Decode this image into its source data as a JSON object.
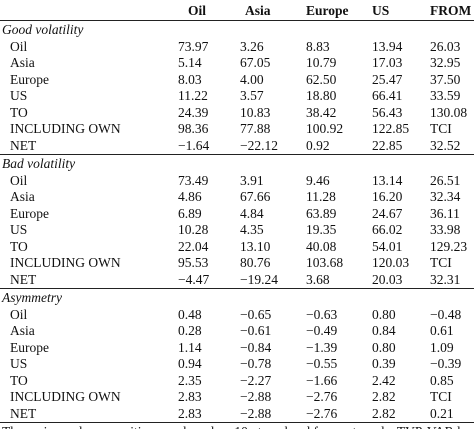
{
  "table": {
    "header": [
      "Oil",
      "Asia",
      "Europe",
      "US",
      "FROM"
    ],
    "sections": [
      {
        "title": "Good volatility",
        "rows": [
          [
            "Oil",
            "73.97",
            "3.26",
            "8.83",
            "13.94",
            "26.03"
          ],
          [
            "Asia",
            "5.14",
            "67.05",
            "10.79",
            "17.03",
            "32.95"
          ],
          [
            "Europe",
            "8.03",
            "4.00",
            "62.50",
            "25.47",
            "37.50"
          ],
          [
            "US",
            "11.22",
            "3.57",
            "18.80",
            "66.41",
            "33.59"
          ],
          [
            "TO",
            "24.39",
            "10.83",
            "38.42",
            "56.43",
            "130.08"
          ],
          [
            "INCLUDING OWN",
            "98.36",
            "77.88",
            "100.92",
            "122.85",
            "TCI"
          ],
          [
            "NET",
            "−1.64",
            "−22.12",
            "0.92",
            "22.85",
            "32.52"
          ]
        ]
      },
      {
        "title": "Bad volatility",
        "rows": [
          [
            "Oil",
            "73.49",
            "3.91",
            "9.46",
            "13.14",
            "26.51"
          ],
          [
            "Asia",
            "4.86",
            "67.66",
            "11.28",
            "16.20",
            "32.34"
          ],
          [
            "Europe",
            "6.89",
            "4.84",
            "63.89",
            "24.67",
            "36.11"
          ],
          [
            "US",
            "10.28",
            "4.35",
            "19.35",
            "66.02",
            "33.98"
          ],
          [
            "TO",
            "22.04",
            "13.10",
            "40.08",
            "54.01",
            "129.23"
          ],
          [
            "INCLUDING OWN",
            "95.53",
            "80.76",
            "103.68",
            "120.03",
            "TCI"
          ],
          [
            "NET",
            "−4.47",
            "−19.24",
            "3.68",
            "20.03",
            "32.31"
          ]
        ]
      },
      {
        "title": "Asymmetry",
        "rows": [
          [
            "Oil",
            "0.48",
            "−0.65",
            "−0.63",
            "0.80",
            "−0.48"
          ],
          [
            "Asia",
            "0.28",
            "−0.61",
            "−0.49",
            "0.84",
            "0.61"
          ],
          [
            "Europe",
            "1.14",
            "−0.84",
            "−1.39",
            "0.80",
            "1.09"
          ],
          [
            "US",
            "0.94",
            "−0.78",
            "−0.55",
            "0.39",
            "−0.39"
          ],
          [
            "TO",
            "2.35",
            "−2.27",
            "−1.66",
            "2.42",
            "0.85"
          ],
          [
            "INCLUDING OWN",
            "2.83",
            "−2.88",
            "−2.76",
            "2.82",
            "TCI"
          ],
          [
            "NET",
            "2.83",
            "−2.88",
            "−2.76",
            "2.82",
            "0.21"
          ]
        ]
      }
    ],
    "footnote": "The variance decompositions are based on 10-step-ahead forecasts and a TVP-VAR la"
  }
}
